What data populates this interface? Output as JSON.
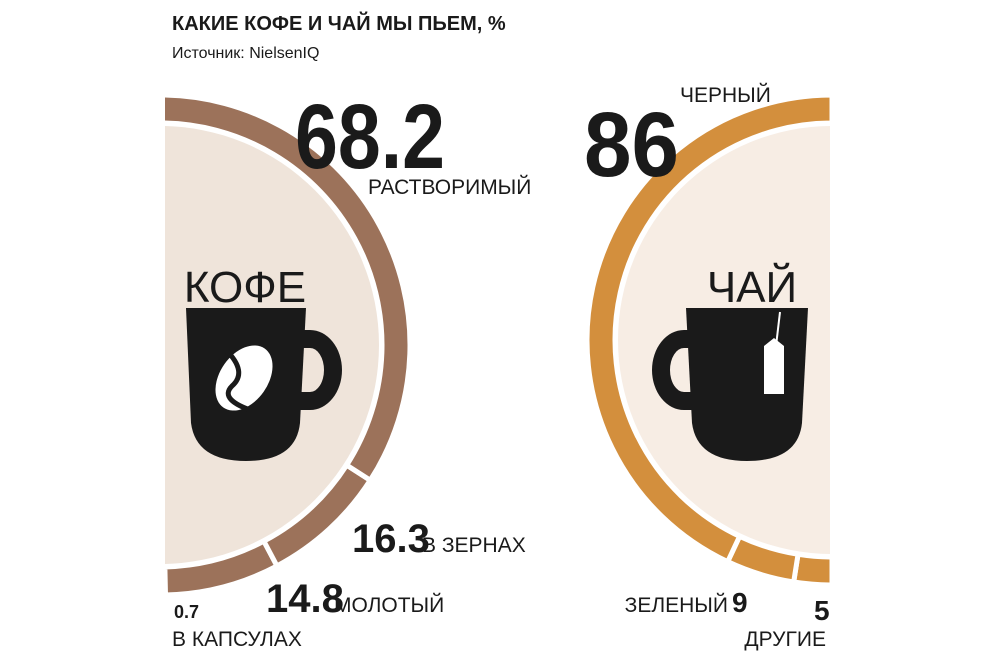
{
  "title": "КАКИЕ КОФЕ И ЧАЙ МЫ ПЬЕМ, %",
  "source": "Источник: NielsenIQ",
  "chart_data": [
    {
      "type": "donut",
      "center_label": "КОФЕ",
      "categories": [
        "В КАПСУЛАХ",
        "МОЛОТЫЙ",
        "В ЗЕРНАХ",
        "РАСТВОРИМЫЙ"
      ],
      "values": [
        0.7,
        14.8,
        16.3,
        68.2
      ],
      "color": "#9c725a"
    },
    {
      "type": "donut",
      "center_label": "ЧАЙ",
      "categories": [
        "ДРУГИЕ",
        "ЗЕЛЕНЫЙ",
        "ЧЕРНЫЙ"
      ],
      "values": [
        5,
        9,
        86
      ],
      "color": "#d38f3d"
    }
  ]
}
